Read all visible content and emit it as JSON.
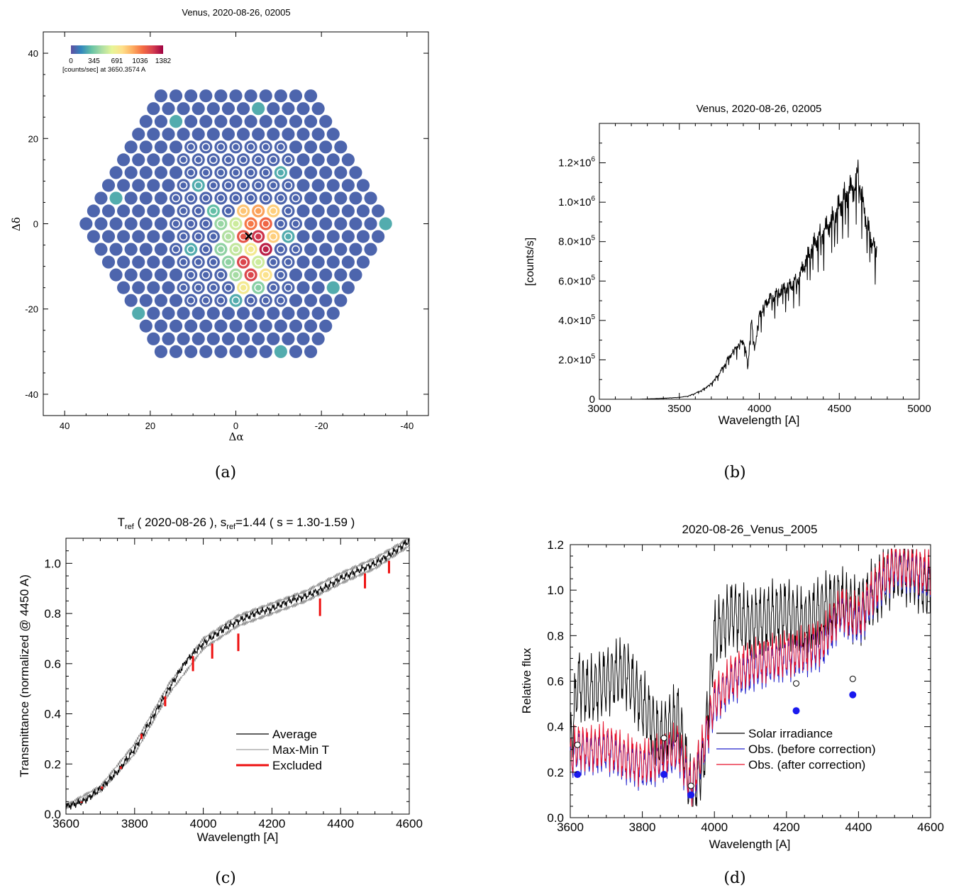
{
  "panels": [
    {
      "id": "a",
      "caption": "(a)",
      "chart_data": {
        "type": "scatter",
        "title": "Venus, 2020-08-26, 02005",
        "xlabel": "Δα",
        "ylabel": "Δδ",
        "xlim": [
          45,
          -45
        ],
        "ylim": [
          -45,
          45
        ],
        "xticks": [
          "40",
          "20",
          "0",
          "-20",
          "-40"
        ],
        "yticks": [
          "40",
          "20",
          "0",
          "-20",
          "-40"
        ],
        "colorbar": {
          "tick_labels": [
            "0",
            "345",
            "691",
            "1036",
            "1382"
          ],
          "range": [
            0,
            1382
          ],
          "label": "[counts/sec] at 3650.3574 A",
          "colors": [
            "#5e4fa2",
            "#3288bd",
            "#66c2a5",
            "#abdda4",
            "#e6f598",
            "#fee08b",
            "#fdae61",
            "#f46d43",
            "#d53e4f",
            "#9e0142"
          ]
        },
        "grid": {
          "pitch": 3.5,
          "row_spacing": 3.0,
          "rows_from": -10,
          "rows_to": 10,
          "hexagon_half_width_cells": 20
        },
        "center_marker": {
          "x": -3.0,
          "y": -3.0,
          "symbol": "×"
        },
        "hot_fibers": [
          {
            "x": -5.3,
            "y": 3.0,
            "value": 950
          },
          {
            "x": -8.8,
            "y": 3.0,
            "value": 820
          },
          {
            "x": -1.8,
            "y": 3.0,
            "value": 850
          },
          {
            "x": -3.5,
            "y": 0.0,
            "value": 1050
          },
          {
            "x": -7.0,
            "y": 0.0,
            "value": 1100
          },
          {
            "x": 0.0,
            "y": 0.0,
            "value": 550
          },
          {
            "x": 3.5,
            "y": 0.0,
            "value": 420
          },
          {
            "x": -5.3,
            "y": -3.0,
            "value": 1250
          },
          {
            "x": -1.8,
            "y": -3.0,
            "value": 1150
          },
          {
            "x": 1.8,
            "y": -3.0,
            "value": 480
          },
          {
            "x": -8.8,
            "y": -3.0,
            "value": 820
          },
          {
            "x": -3.5,
            "y": -6.0,
            "value": 700
          },
          {
            "x": -7.0,
            "y": -6.0,
            "value": 1300
          },
          {
            "x": 0.0,
            "y": -6.0,
            "value": 520
          },
          {
            "x": 3.5,
            "y": -6.0,
            "value": 400
          },
          {
            "x": -5.3,
            "y": -9.0,
            "value": 550
          },
          {
            "x": -1.8,
            "y": -9.0,
            "value": 1200
          },
          {
            "x": 1.8,
            "y": -9.0,
            "value": 400
          },
          {
            "x": -3.5,
            "y": -12.0,
            "value": 1200
          },
          {
            "x": -7.0,
            "y": -12.0,
            "value": 750
          },
          {
            "x": 0.0,
            "y": -12.0,
            "value": 450
          },
          {
            "x": -1.8,
            "y": -15.0,
            "value": 700
          },
          {
            "x": -5.3,
            "y": -15.0,
            "value": 380
          },
          {
            "x": 1.8,
            "y": 6.0,
            "value": 350
          },
          {
            "x": 5.3,
            "y": 3.0,
            "value": 300
          }
        ]
      }
    },
    {
      "id": "b",
      "caption": "(b)",
      "chart_data": {
        "type": "line",
        "title": "Venus, 2020-08-26, 02005",
        "xlabel": "Wavelength [A]",
        "ylabel": "[counts/s]",
        "xlim": [
          3000,
          5000
        ],
        "ylim": [
          0,
          1400000
        ],
        "xticks": [
          3000,
          3500,
          4000,
          4500,
          5000
        ],
        "yticks": [
          {
            "value": 0,
            "mantissa": "0",
            "exp": ""
          },
          {
            "value": 200000,
            "mantissa": "2.0×10",
            "exp": "5"
          },
          {
            "value": 400000,
            "mantissa": "4.0×10",
            "exp": "5"
          },
          {
            "value": 600000,
            "mantissa": "6.0×10",
            "exp": "5"
          },
          {
            "value": 800000,
            "mantissa": "8.0×10",
            "exp": "5"
          },
          {
            "value": 1000000,
            "mantissa": "1.0×10",
            "exp": "6"
          },
          {
            "value": 1200000,
            "mantissa": "1.2×10",
            "exp": "6"
          }
        ],
        "series": [
          {
            "color": "#000000",
            "x": [
              3250,
              3400,
              3500,
              3550,
              3600,
              3650,
              3700,
              3750,
              3800,
              3850,
              3900,
              3930,
              3950,
              3970,
              4000,
              4050,
              4100,
              4150,
              4200,
              4250,
              4300,
              4350,
              4400,
              4450,
              4500,
              4550,
              4600,
              4620,
              4650,
              4700,
              4740
            ],
            "y": [
              0,
              5000,
              10000,
              15000,
              30000,
              50000,
              80000,
              130000,
              200000,
              260000,
              300000,
              180000,
              400000,
              250000,
              430000,
              500000,
              530000,
              560000,
              580000,
              620000,
              720000,
              800000,
              850000,
              900000,
              980000,
              1050000,
              1080000,
              1150000,
              980000,
              800000,
              750000
            ]
          }
        ]
      }
    },
    {
      "id": "c",
      "caption": "(c)",
      "chart_data": {
        "type": "line",
        "title": "T_ref ( 2020-08-26 ), s_ref=1.44 ( s = 1.30-1.59 )",
        "title_parts": {
          "t": "T",
          "t_sub": "ref",
          "mid": " ( 2020-08-26 ), s",
          "s_sub": "ref",
          "tail": "=1.44 ( s = 1.30-1.59 )"
        },
        "xlabel": "Wavelength [A]",
        "ylabel": "Transmittance (normalized @ 4450 A)",
        "xlim": [
          3600,
          4600
        ],
        "ylim": [
          0,
          1.1
        ],
        "xticks": [
          3600,
          3800,
          4000,
          4200,
          4400,
          4600
        ],
        "yticks": [
          0.0,
          0.2,
          0.4,
          0.6,
          0.8,
          1.0
        ],
        "ytick_labels": [
          "0.0",
          "0.2",
          "0.4",
          "0.6",
          "0.8",
          "1.0"
        ],
        "legend": {
          "placement": "lower-right",
          "entries": [
            "Average",
            "Max-Min T",
            "Excluded"
          ]
        },
        "series": [
          {
            "name": "Average",
            "color": "#000000",
            "x": [
              3600,
              3650,
              3700,
              3750,
              3800,
              3850,
              3900,
              3950,
              4000,
              4050,
              4100,
              4150,
              4200,
              4250,
              4300,
              4350,
              4400,
              4450,
              4500,
              4550,
              4600
            ],
            "y": [
              0.03,
              0.05,
              0.1,
              0.17,
              0.26,
              0.38,
              0.5,
              0.61,
              0.68,
              0.73,
              0.77,
              0.8,
              0.82,
              0.85,
              0.87,
              0.9,
              0.94,
              0.97,
              1.0,
              1.04,
              1.09
            ]
          },
          {
            "name": "Max-Min T",
            "color": "#8a8a8a",
            "x": [
              3600,
              3700,
              3800,
              3900,
              4000,
              4100,
              4200,
              4300,
              4400,
              4500,
              4600
            ],
            "y_upper": [
              0.035,
              0.11,
              0.28,
              0.52,
              0.7,
              0.79,
              0.84,
              0.89,
              0.96,
              1.02,
              1.1
            ],
            "y_lower": [
              0.025,
              0.09,
              0.24,
              0.48,
              0.66,
              0.75,
              0.8,
              0.85,
              0.92,
              0.98,
              1.07
            ]
          },
          {
            "name": "Excluded",
            "color": "#ee1111",
            "lines": [
              {
                "x": 3645,
                "y0": 0.045,
                "y1": 0.05
              },
              {
                "x": 3705,
                "y0": 0.1,
                "y1": 0.11
              },
              {
                "x": 3760,
                "y0": 0.18,
                "y1": 0.19
              },
              {
                "x": 3820,
                "y0": 0.3,
                "y1": 0.32
              },
              {
                "x": 3889,
                "y0": 0.43,
                "y1": 0.47
              },
              {
                "x": 3970,
                "y0": 0.57,
                "y1": 0.63
              },
              {
                "x": 4026,
                "y0": 0.62,
                "y1": 0.68
              },
              {
                "x": 4102,
                "y0": 0.65,
                "y1": 0.72
              },
              {
                "x": 4340,
                "y0": 0.79,
                "y1": 0.86
              },
              {
                "x": 4471,
                "y0": 0.9,
                "y1": 0.96
              },
              {
                "x": 4541,
                "y0": 0.96,
                "y1": 1.01
              }
            ]
          }
        ]
      }
    },
    {
      "id": "d",
      "caption": "(d)",
      "chart_data": {
        "type": "line",
        "title": "2020-08-26_Venus_2005",
        "xlabel": "Wavelength [A]",
        "ylabel": "Relative flux",
        "xlim": [
          3600,
          4600
        ],
        "ylim": [
          0,
          1.2
        ],
        "xticks": [
          3600,
          3800,
          4000,
          4200,
          4400,
          4600
        ],
        "xtick_labels": [
          "3600",
          "3800",
          "4000",
          "4200",
          "4400",
          "4600"
        ],
        "yticks": [
          0.0,
          0.2,
          0.4,
          0.6,
          0.8,
          1.0,
          1.2
        ],
        "ytick_labels": [
          "0.0",
          "0.2",
          "0.4",
          "0.6",
          "0.8",
          "1.0",
          "1.2"
        ],
        "legend": {
          "placement": "lower-right",
          "entries": [
            "Solar irradiance",
            "Obs. (before correction)",
            "Obs. (after correction)"
          ]
        },
        "series": [
          {
            "name": "Solar irradiance",
            "color": "#000000",
            "x": [
              3600,
              3620,
              3650,
              3700,
              3750,
              3800,
              3850,
              3900,
              3935,
              3970,
              4000,
              4050,
              4100,
              4150,
              4200,
              4250,
              4300,
              4350,
              4400,
              4450,
              4500,
              4550,
              4600
            ],
            "y": [
              0.3,
              0.6,
              0.55,
              0.6,
              0.65,
              0.5,
              0.35,
              0.45,
              0.1,
              0.25,
              0.8,
              0.9,
              0.85,
              0.88,
              0.9,
              0.85,
              0.92,
              0.95,
              0.9,
              1.0,
              1.1,
              1.08,
              1.0
            ]
          },
          {
            "name": "Obs. (before correction)",
            "color": "#2222cc",
            "x": [
              3600,
              3620,
              3650,
              3700,
              3750,
              3800,
              3850,
              3900,
              3935,
              3970,
              4000,
              4050,
              4100,
              4150,
              4200,
              4250,
              4300,
              4350,
              4400,
              4450,
              4500,
              4550,
              4600
            ],
            "y": [
              0.25,
              0.3,
              0.28,
              0.3,
              0.25,
              0.22,
              0.25,
              0.3,
              0.12,
              0.3,
              0.5,
              0.6,
              0.65,
              0.68,
              0.7,
              0.72,
              0.75,
              0.9,
              0.85,
              1.0,
              1.1,
              1.08,
              1.05
            ]
          },
          {
            "name": "Obs. (after correction)",
            "color": "#e8102a",
            "x": [
              3600,
              3620,
              3650,
              3700,
              3750,
              3800,
              3850,
              3900,
              3935,
              3970,
              4000,
              4050,
              4100,
              4150,
              4200,
              4250,
              4300,
              4350,
              4400,
              4450,
              4500,
              4550,
              4600
            ],
            "y": [
              0.26,
              0.32,
              0.3,
              0.32,
              0.27,
              0.24,
              0.27,
              0.32,
              0.14,
              0.32,
              0.52,
              0.62,
              0.68,
              0.7,
              0.72,
              0.74,
              0.78,
              0.92,
              0.88,
              1.02,
              1.12,
              1.1,
              1.07
            ]
          }
        ],
        "markers_open": [
          {
            "x": 3620,
            "y": 0.32
          },
          {
            "x": 3860,
            "y": 0.35
          },
          {
            "x": 3935,
            "y": 0.14
          },
          {
            "x": 4227,
            "y": 0.59
          },
          {
            "x": 4384,
            "y": 0.61
          }
        ],
        "markers_filled": [
          {
            "x": 3620,
            "y": 0.19,
            "color": "#1a1aee"
          },
          {
            "x": 3860,
            "y": 0.19,
            "color": "#1a1aee"
          },
          {
            "x": 3935,
            "y": 0.1,
            "color": "#1a1aee"
          },
          {
            "x": 4227,
            "y": 0.47,
            "color": "#1a1aee"
          },
          {
            "x": 4384,
            "y": 0.54,
            "color": "#1a1aee"
          }
        ]
      }
    }
  ]
}
